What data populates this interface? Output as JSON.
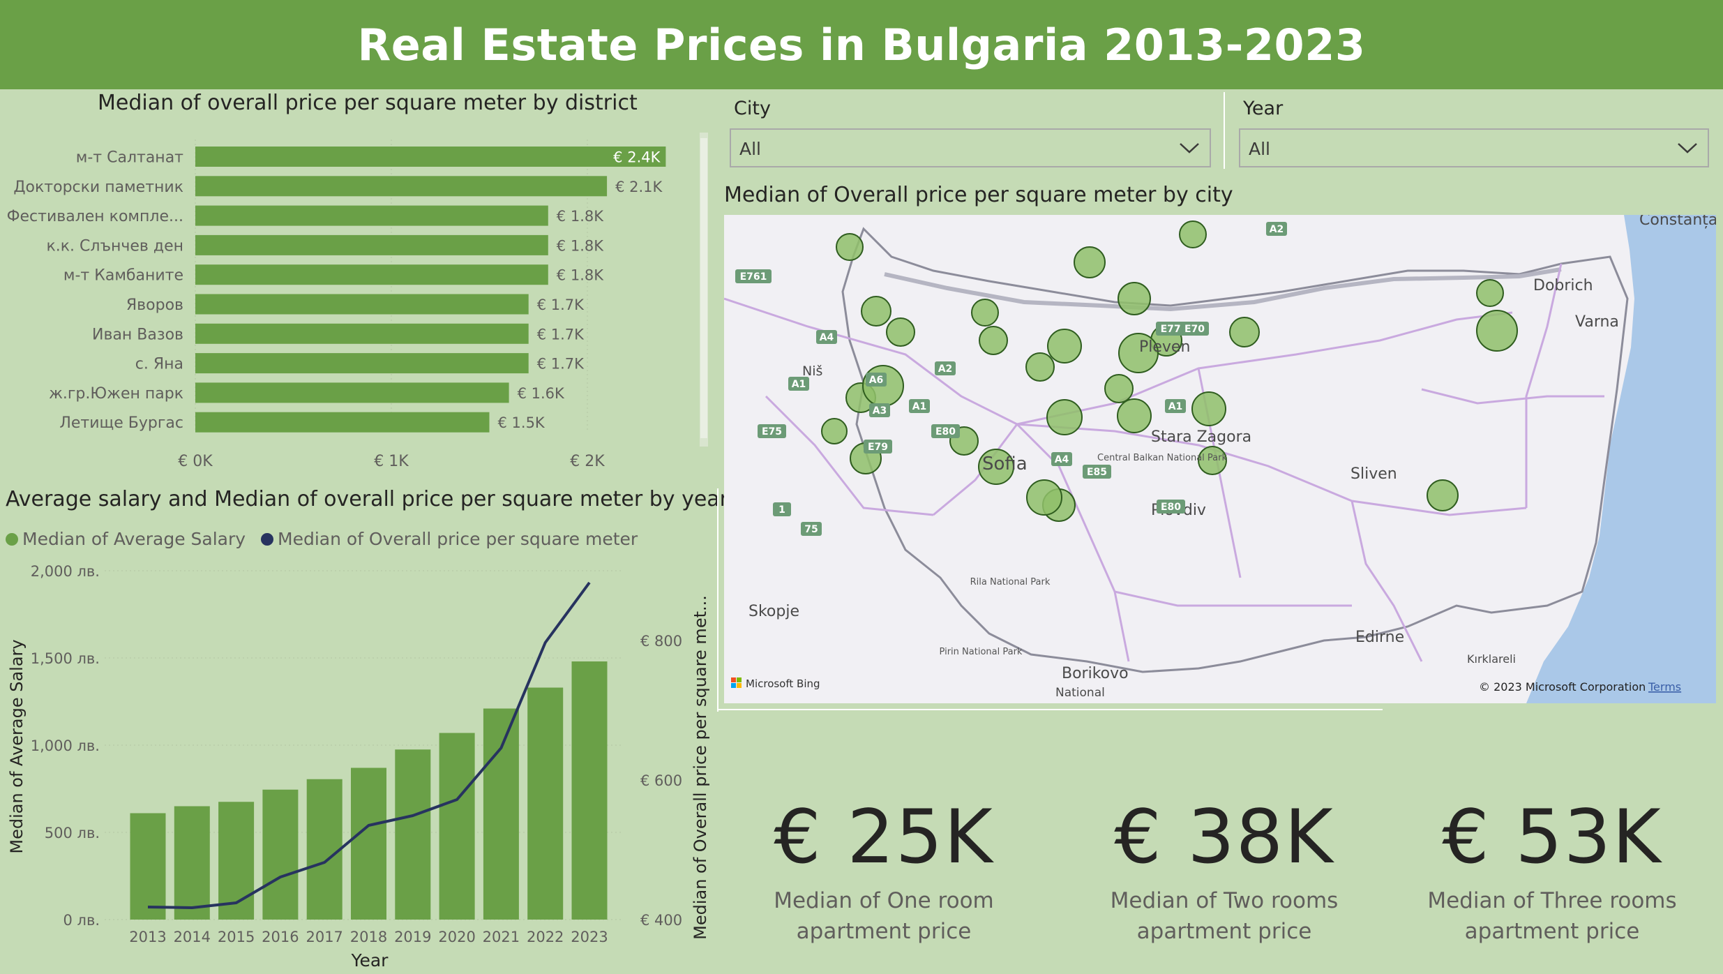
{
  "header": {
    "title": "Real Estate Prices in Bulgaria 2013-2023"
  },
  "district_chart": {
    "title": "Median of overall price per square meter by district",
    "axis_ticks": [
      "€ 0K",
      "€ 1K",
      "€ 2K"
    ]
  },
  "combo_chart": {
    "title": "Average salary and Median of overall price per square meter by year",
    "legend": [
      "Median of Average Salary",
      "Median of Overall price per square meter"
    ],
    "left_ticks": [
      "2,000 лв.",
      "1,500 лв.",
      "1,000 лв.",
      "500 лв.",
      "0 лв."
    ],
    "right_ticks": [
      "€ 800",
      "€ 600",
      "€ 400"
    ],
    "ylabel_left": "Median of Average Salary",
    "ylabel_right": "Median of Overall price per square met...",
    "xlabel": "Year"
  },
  "slicers": {
    "city": {
      "label": "City",
      "value": "All"
    },
    "year": {
      "label": "Year",
      "value": "All"
    }
  },
  "map": {
    "title": "Median of Overall price per square meter by city",
    "labels": {
      "pleven": "Pleven",
      "sofia": "Sofia",
      "plovdiv": "Plovdiv",
      "stara_zagora": "Stara Zagora",
      "sliven": "Sliven",
      "varna": "Varna",
      "dobrich": "Dobrich",
      "constanta": "Constanța",
      "nis": "Niš",
      "skopje": "Skopje",
      "edirne": "Edirne",
      "kirklareli": "Kırklareli",
      "borikovo": "Borikovo",
      "central_balkan": "Central Balkan National Park",
      "rila": "Rila National Park",
      "pirin": "Pirin National Park",
      "national": "National"
    },
    "roads": [
      "E761",
      "A4",
      "A1",
      "A6",
      "A2",
      "A1",
      "E75",
      "E79",
      "E80",
      "A1",
      "A4",
      "E85",
      "E80",
      "E772",
      "E70",
      "A2",
      "1",
      "75",
      "A3"
    ],
    "attribution": "© 2023 Microsoft Corporation",
    "terms": "Terms",
    "bing": "Microsoft Bing"
  },
  "kpis": [
    {
      "value": "€ 25K",
      "line1": "Median of One room",
      "line2": "apartment price"
    },
    {
      "value": "€ 38K",
      "line1": "Median of Two rooms",
      "line2": "apartment price"
    },
    {
      "value": "€ 53K",
      "line1": "Median of Three rooms",
      "line2": "apartment price"
    }
  ],
  "colors": {
    "green": "#6aa047",
    "navy": "#27335f",
    "background": "#c5dbb5"
  },
  "chart_data": [
    {
      "type": "bar",
      "orientation": "horizontal",
      "title": "Median of overall price per square meter by district",
      "categories": [
        "м-т Салтанат",
        "Докторски паметник",
        "Фестивален компле...",
        "к.к. Слънчев ден",
        "м-т Камбаните",
        "Яворов",
        "Иван Вазов",
        "с. Яна",
        "ж.гр.Южен парк",
        "Летище Бургас"
      ],
      "values": [
        2400,
        2100,
        1800,
        1800,
        1800,
        1700,
        1700,
        1700,
        1600,
        1500
      ],
      "data_labels": [
        "€ 2.4K",
        "€ 2.1K",
        "€ 1.8K",
        "€ 1.8K",
        "€ 1.8K",
        "€ 1.7K",
        "€ 1.7K",
        "€ 1.7K",
        "€ 1.6K",
        "€ 1.5K"
      ],
      "xlim": [
        0,
        2000
      ],
      "grid": true
    },
    {
      "type": "bar",
      "title": "Average salary and Median of overall price per square meter by year",
      "categories": [
        "2013",
        "2014",
        "2015",
        "2016",
        "2017",
        "2018",
        "2019",
        "2020",
        "2021",
        "2022",
        "2023"
      ],
      "series": [
        {
          "name": "Median of Average Salary",
          "type": "bar",
          "axis": "left",
          "values": [
            610,
            650,
            675,
            745,
            805,
            870,
            975,
            1070,
            1210,
            1330,
            1480
          ]
        },
        {
          "name": "Median of Overall price per square meter",
          "type": "line",
          "axis": "right",
          "values": [
            418,
            417,
            424,
            461,
            482,
            535,
            549,
            572,
            646,
            797,
            883
          ]
        }
      ],
      "ylim_left": [
        0,
        2000
      ],
      "ylim_right": [
        400,
        900
      ],
      "xlabel": "Year",
      "ylabel": "Median of Average Salary",
      "ylabel_right": "Median of Overall price per square met...",
      "legend_position": "top-left",
      "grid": true
    }
  ]
}
